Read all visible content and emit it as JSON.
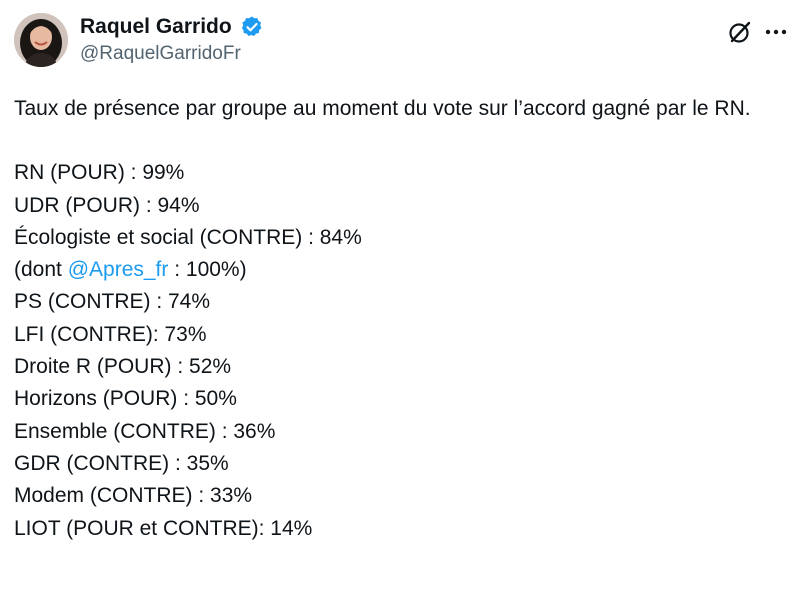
{
  "author": {
    "display_name": "Raquel Garrido",
    "handle": "@RaquelGarridoFr",
    "verified": true,
    "verified_color": "#1d9bf0",
    "avatar_icon": "avatar-photo"
  },
  "actions": {
    "grok_icon": "grok-icon",
    "more_icon": "more-dots-icon"
  },
  "tweet": {
    "intro": "Taux de présence par groupe au moment du vote sur l’accord gagné par le RN.",
    "lines": [
      "RN (POUR) : 99%",
      "UDR (POUR) : 94%",
      "Écologiste et social (CONTRE) : 84%"
    ],
    "dont_prefix": "(dont ",
    "mention": "@Apres_fr",
    "dont_suffix": " : 100%)",
    "lines2": [
      "PS (CONTRE) : 74%",
      "LFI (CONTRE): 73%",
      "Droite R (POUR) : 52%",
      "Horizons (POUR) : 50%",
      "Ensemble (CONTRE) : 36%",
      "GDR (CONTRE) : 35%",
      "Modem (CONTRE) : 33%",
      "LIOT (POUR et CONTRE): 14%"
    ]
  },
  "colors": {
    "text": "#0f1419",
    "secondary": "#536471",
    "link": "#1d9bf0"
  }
}
